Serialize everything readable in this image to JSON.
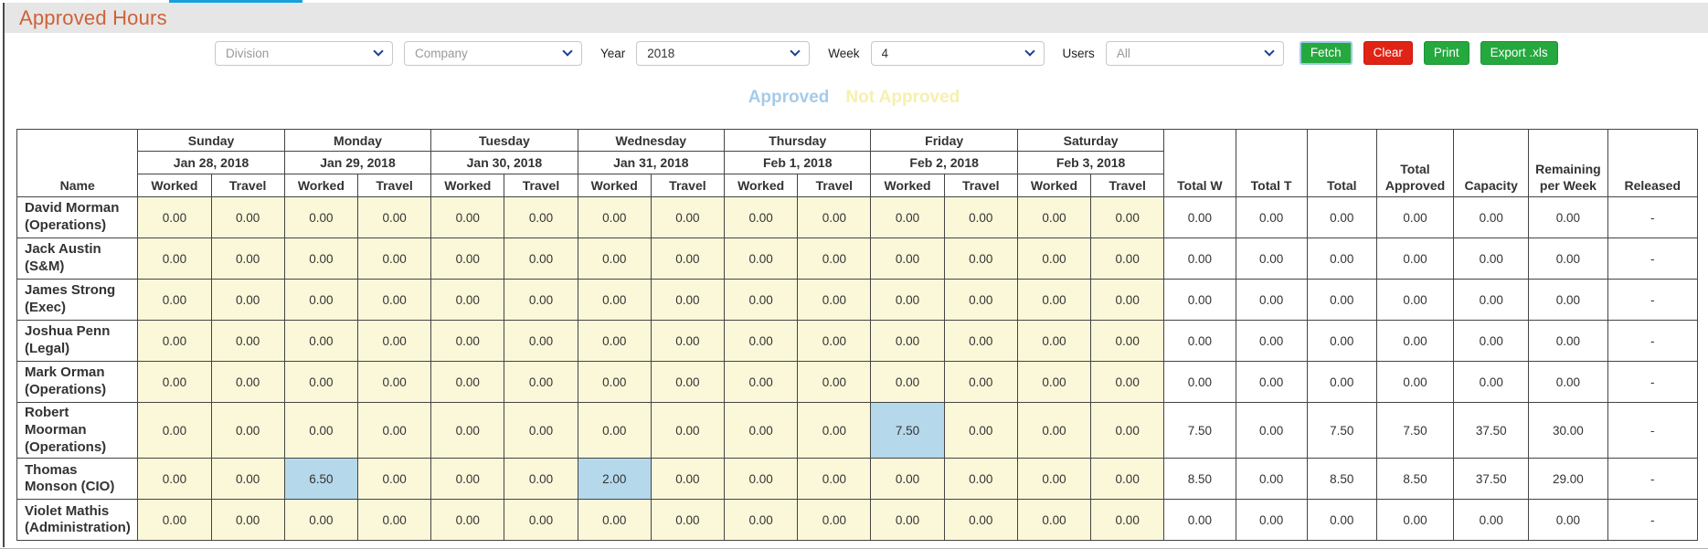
{
  "window": {
    "title": "Approved Hours"
  },
  "colors": {
    "title_color": "#cf6137",
    "button_green": "#25a83e",
    "button_red": "#e02314",
    "approved_tab": "#a6cbe9",
    "not_approved_tab": "#f6f0ae",
    "day_cell_bg": "#fbf8d9",
    "highlight_cell": "#b5d8ea",
    "tab_indicator": "#18a0dc"
  },
  "filters": {
    "division": {
      "placeholder": "Division"
    },
    "company": {
      "placeholder": "Company"
    },
    "year": {
      "label": "Year",
      "value": "2018"
    },
    "week": {
      "label": "Week",
      "value": "4"
    },
    "users": {
      "label": "Users",
      "value": "All"
    },
    "buttons": {
      "fetch": "Fetch",
      "clear": "Clear",
      "print": "Print",
      "export": "Export .xls"
    }
  },
  "tabs": {
    "approved": "Approved",
    "not_approved": "Not Approved"
  },
  "table": {
    "name_header": "Name",
    "sub_headers": [
      "Worked",
      "Travel"
    ],
    "days": [
      {
        "name": "Sunday",
        "date": "Jan 28, 2018"
      },
      {
        "name": "Monday",
        "date": "Jan 29, 2018"
      },
      {
        "name": "Tuesday",
        "date": "Jan 30, 2018"
      },
      {
        "name": "Wednesday",
        "date": "Jan 31, 2018"
      },
      {
        "name": "Thursday",
        "date": "Feb 1, 2018"
      },
      {
        "name": "Friday",
        "date": "Feb 2, 2018"
      },
      {
        "name": "Saturday",
        "date": "Feb 3, 2018"
      }
    ],
    "total_headers": [
      "Total W",
      "Total T",
      "Total",
      "Total Approved",
      "Capacity",
      "Remaining per Week",
      "Released"
    ],
    "rows": [
      {
        "name": "David Morman (Operations)",
        "day_values": [
          "0.00",
          "0.00",
          "0.00",
          "0.00",
          "0.00",
          "0.00",
          "0.00",
          "0.00",
          "0.00",
          "0.00",
          "0.00",
          "0.00",
          "0.00",
          "0.00"
        ],
        "highlighted": [],
        "totals": [
          "0.00",
          "0.00",
          "0.00",
          "0.00",
          "0.00",
          "0.00",
          "-"
        ]
      },
      {
        "name": "Jack Austin (S&M)",
        "day_values": [
          "0.00",
          "0.00",
          "0.00",
          "0.00",
          "0.00",
          "0.00",
          "0.00",
          "0.00",
          "0.00",
          "0.00",
          "0.00",
          "0.00",
          "0.00",
          "0.00"
        ],
        "highlighted": [],
        "totals": [
          "0.00",
          "0.00",
          "0.00",
          "0.00",
          "0.00",
          "0.00",
          "-"
        ]
      },
      {
        "name": "James Strong (Exec)",
        "day_values": [
          "0.00",
          "0.00",
          "0.00",
          "0.00",
          "0.00",
          "0.00",
          "0.00",
          "0.00",
          "0.00",
          "0.00",
          "0.00",
          "0.00",
          "0.00",
          "0.00"
        ],
        "highlighted": [],
        "totals": [
          "0.00",
          "0.00",
          "0.00",
          "0.00",
          "0.00",
          "0.00",
          "-"
        ]
      },
      {
        "name": "Joshua Penn (Legal)",
        "day_values": [
          "0.00",
          "0.00",
          "0.00",
          "0.00",
          "0.00",
          "0.00",
          "0.00",
          "0.00",
          "0.00",
          "0.00",
          "0.00",
          "0.00",
          "0.00",
          "0.00"
        ],
        "highlighted": [],
        "totals": [
          "0.00",
          "0.00",
          "0.00",
          "0.00",
          "0.00",
          "0.00",
          "-"
        ]
      },
      {
        "name": "Mark Orman (Operations)",
        "day_values": [
          "0.00",
          "0.00",
          "0.00",
          "0.00",
          "0.00",
          "0.00",
          "0.00",
          "0.00",
          "0.00",
          "0.00",
          "0.00",
          "0.00",
          "0.00",
          "0.00"
        ],
        "highlighted": [],
        "totals": [
          "0.00",
          "0.00",
          "0.00",
          "0.00",
          "0.00",
          "0.00",
          "-"
        ]
      },
      {
        "name": "Robert Moorman (Operations)",
        "day_values": [
          "0.00",
          "0.00",
          "0.00",
          "0.00",
          "0.00",
          "0.00",
          "0.00",
          "0.00",
          "0.00",
          "0.00",
          "7.50",
          "0.00",
          "0.00",
          "0.00"
        ],
        "highlighted": [
          10
        ],
        "totals": [
          "7.50",
          "0.00",
          "7.50",
          "7.50",
          "37.50",
          "30.00",
          "-"
        ]
      },
      {
        "name": "Thomas Monson (CIO)",
        "day_values": [
          "0.00",
          "0.00",
          "6.50",
          "0.00",
          "0.00",
          "0.00",
          "2.00",
          "0.00",
          "0.00",
          "0.00",
          "0.00",
          "0.00",
          "0.00",
          "0.00"
        ],
        "highlighted": [
          2,
          6
        ],
        "totals": [
          "8.50",
          "0.00",
          "8.50",
          "8.50",
          "37.50",
          "29.00",
          "-"
        ]
      },
      {
        "name": "Violet Mathis (Administration)",
        "day_values": [
          "0.00",
          "0.00",
          "0.00",
          "0.00",
          "0.00",
          "0.00",
          "0.00",
          "0.00",
          "0.00",
          "0.00",
          "0.00",
          "0.00",
          "0.00",
          "0.00"
        ],
        "highlighted": [],
        "totals": [
          "0.00",
          "0.00",
          "0.00",
          "0.00",
          "0.00",
          "0.00",
          "-"
        ]
      }
    ]
  }
}
